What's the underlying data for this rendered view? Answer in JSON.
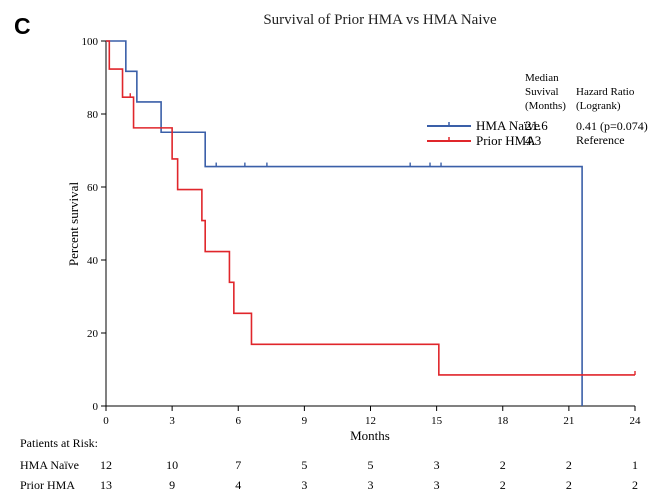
{
  "panel_label": "C",
  "chart_data": {
    "type": "line",
    "subtype": "kaplan-meier",
    "title": "Survival of Prior HMA vs HMA Naive",
    "xlabel": "Months",
    "ylabel": "Percent survival",
    "xlim": [
      0,
      24
    ],
    "ylim": [
      0,
      100
    ],
    "xticks": [
      0,
      3,
      6,
      9,
      12,
      15,
      18,
      21,
      24
    ],
    "yticks": [
      0,
      20,
      40,
      60,
      80,
      100
    ],
    "grid": false,
    "legend": {
      "position": "top-right",
      "headers": {
        "median": "Median Suvival (Months)",
        "hazard": "Hazard Ratio (Logrank)"
      },
      "entries": [
        {
          "series": "HMA Naïve",
          "median": "21.6",
          "hazard": "0.41 (p=0.074)"
        },
        {
          "series": "Prior HMA",
          "median": "4.3",
          "hazard": "Reference"
        }
      ]
    },
    "series": [
      {
        "name": "HMA Naïve",
        "color": "#3a5fa8",
        "steps": [
          [
            0,
            100
          ],
          [
            0.9,
            91.7
          ],
          [
            1.4,
            83.3
          ],
          [
            2.5,
            75.0
          ],
          [
            4.5,
            65.6
          ],
          [
            21.6,
            0
          ]
        ],
        "censored": [
          [
            5.0,
            65.6
          ],
          [
            6.3,
            65.6
          ],
          [
            7.3,
            65.6
          ],
          [
            13.8,
            65.6
          ],
          [
            14.7,
            65.6
          ],
          [
            15.2,
            65.6
          ]
        ],
        "end_x": 21.6
      },
      {
        "name": "Prior HMA",
        "color": "#e0262b",
        "steps": [
          [
            0,
            100
          ],
          [
            0.15,
            92.3
          ],
          [
            0.75,
            84.6
          ],
          [
            1.25,
            76.2
          ],
          [
            3.0,
            67.7
          ],
          [
            3.25,
            59.3
          ],
          [
            4.35,
            50.8
          ],
          [
            4.5,
            42.3
          ],
          [
            5.6,
            33.9
          ],
          [
            5.8,
            25.4
          ],
          [
            6.6,
            16.9
          ],
          [
            15.1,
            8.5
          ]
        ],
        "censored": [
          [
            1.1,
            84.6
          ],
          [
            24.0,
            8.5
          ]
        ],
        "end_x": 24.0
      }
    ],
    "risk_table": {
      "title": "Patients at Risk:",
      "times": [
        0,
        3,
        6,
        9,
        12,
        15,
        18,
        21,
        24
      ],
      "rows": [
        {
          "label": "HMA Naïve",
          "counts": [
            12,
            10,
            7,
            5,
            5,
            3,
            2,
            2,
            1
          ]
        },
        {
          "label": "Prior HMA",
          "counts": [
            13,
            9,
            4,
            3,
            3,
            3,
            2,
            2,
            2
          ]
        }
      ]
    }
  }
}
